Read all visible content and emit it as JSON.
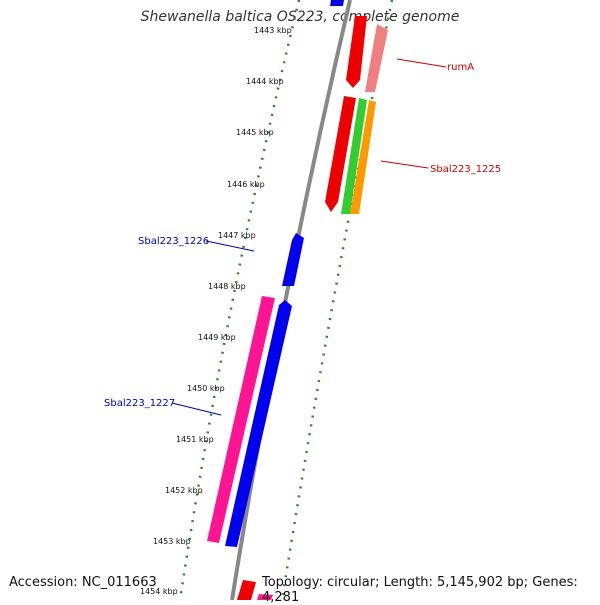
{
  "title": "Shewanella baltica OS223, complete genome",
  "footer": {
    "accession": "Accession: NC_011663",
    "summary": "Topology: circular; Length: 5,145,902 bp; Genes: 4,281"
  },
  "ticks": [
    "1443 kbp",
    "1444 kbp",
    "1445 kbp",
    "1446 kbp",
    "1447 kbp",
    "1448 kbp",
    "1449 kbp",
    "1450 kbp",
    "1451 kbp",
    "1452 kbp",
    "1453 kbp",
    "1454 kbp"
  ],
  "gene_labels": {
    "rumA": "rumA",
    "sbal1225": "Sbal223_1225",
    "sbal1226": "Sbal223_1226",
    "sbal1227": "Sbal223_1227"
  },
  "colors": {
    "blue": "#0000ee",
    "red": "#ee0000",
    "salmon": "#f08080",
    "green": "#33cc33",
    "orange": "#ff9900",
    "pink": "#ff1493",
    "backbone": "#888888",
    "dots": "#228b22",
    "label_red": "#cc0000",
    "label_blue": "#0000bb"
  }
}
